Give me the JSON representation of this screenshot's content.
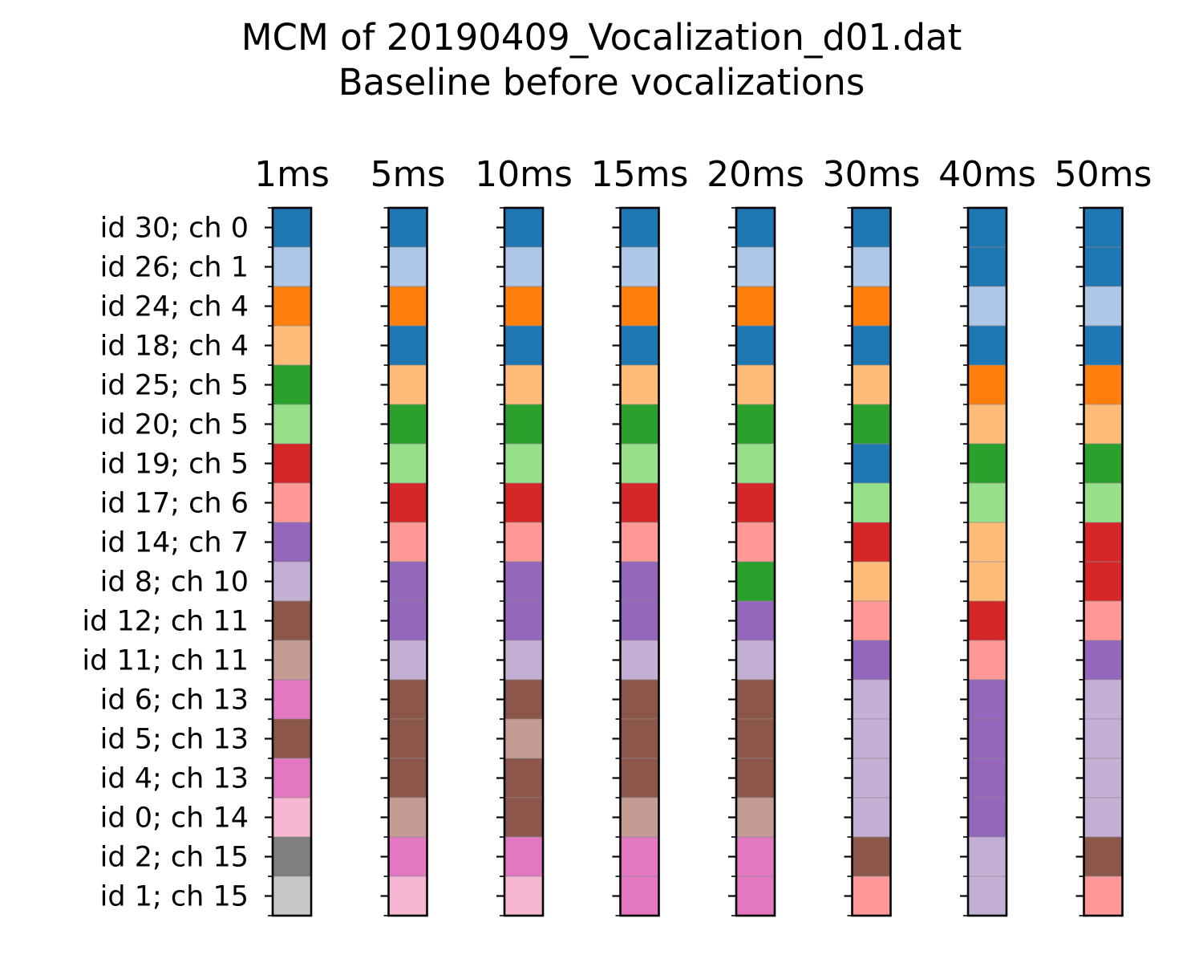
{
  "chart_data": {
    "type": "heatmap",
    "title": "MCM of 20190409_Vocalization_d01.dat",
    "subtitle": "Baseline before vocalizations",
    "columns": [
      "1ms",
      "5ms",
      "10ms",
      "15ms",
      "20ms",
      "30ms",
      "40ms",
      "50ms"
    ],
    "rows": [
      "id 30; ch 0",
      "id 26; ch 1",
      "id 24; ch 4",
      "id 18; ch 4",
      "id 25; ch 5",
      "id 20; ch 5",
      "id 19; ch 5",
      "id 17; ch 6",
      "id 14; ch 7",
      "id 8; ch 10",
      "id 12; ch 11",
      "id 11; ch 11",
      "id 6; ch 13",
      "id 5; ch 13",
      "id 4; ch 13",
      "id 0; ch 14",
      "id 2; ch 15",
      "id 1; ch 15"
    ],
    "palette": [
      "#1f77b4",
      "#aec7e8",
      "#ff7f0e",
      "#ffbb78",
      "#2ca02c",
      "#98df8a",
      "#d62728",
      "#ff9896",
      "#9467bd",
      "#c5b0d5",
      "#8c564b",
      "#c49c94",
      "#e377c2",
      "#f7b6d2",
      "#7f7f7f",
      "#c7c7c7"
    ],
    "cluster_index": [
      [
        0,
        1,
        2,
        3,
        4,
        5,
        6,
        7,
        8,
        9,
        10,
        11,
        12,
        10,
        12,
        13,
        14,
        15
      ],
      [
        0,
        1,
        2,
        0,
        3,
        4,
        5,
        6,
        7,
        8,
        8,
        9,
        10,
        10,
        10,
        11,
        12,
        13
      ],
      [
        0,
        1,
        2,
        0,
        3,
        4,
        5,
        6,
        7,
        8,
        8,
        9,
        10,
        11,
        10,
        10,
        12,
        13
      ],
      [
        0,
        1,
        2,
        0,
        3,
        4,
        5,
        6,
        7,
        8,
        8,
        9,
        10,
        10,
        10,
        11,
        12,
        12
      ],
      [
        0,
        1,
        2,
        0,
        3,
        4,
        5,
        6,
        7,
        4,
        8,
        9,
        10,
        10,
        10,
        11,
        12,
        12
      ],
      [
        0,
        1,
        2,
        0,
        3,
        4,
        0,
        5,
        6,
        3,
        7,
        8,
        9,
        9,
        9,
        9,
        10,
        7
      ],
      [
        0,
        0,
        1,
        0,
        2,
        3,
        4,
        5,
        3,
        3,
        6,
        7,
        8,
        8,
        8,
        8,
        9,
        9
      ],
      [
        0,
        0,
        1,
        0,
        2,
        3,
        4,
        5,
        6,
        6,
        7,
        8,
        9,
        9,
        9,
        9,
        10,
        7
      ]
    ]
  }
}
